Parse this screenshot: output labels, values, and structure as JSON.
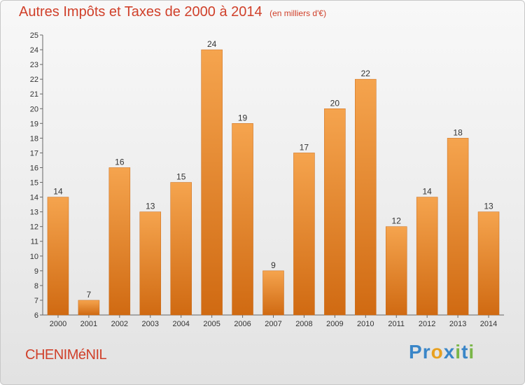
{
  "header": {
    "title": "Autres Impôts et Taxes de 2000 à 2014",
    "unit": "(en milliers d'€)"
  },
  "footer": {
    "commune": "CHENIMéNIL",
    "logo_text": "Proxiti",
    "logo_letters": [
      {
        "ch": "P",
        "color": "#3a86c8"
      },
      {
        "ch": "r",
        "color": "#3a86c8"
      },
      {
        "ch": "o",
        "color": "#e8a020"
      },
      {
        "ch": "x",
        "color": "#3a86c8"
      },
      {
        "ch": "i",
        "color": "#7ab648"
      },
      {
        "ch": "t",
        "color": "#3a86c8"
      },
      {
        "ch": "i",
        "color": "#7ab648"
      }
    ]
  },
  "chart_data": {
    "type": "bar",
    "title": "Autres Impôts et Taxes de 2000 à 2014",
    "subtitle": "(en milliers d'€)",
    "categories": [
      "2000",
      "2001",
      "2002",
      "2003",
      "2004",
      "2005",
      "2006",
      "2007",
      "2008",
      "2009",
      "2010",
      "2011",
      "2012",
      "2013",
      "2014"
    ],
    "values": [
      14,
      7,
      16,
      13,
      15,
      24,
      19,
      9,
      17,
      20,
      22,
      12,
      14,
      18,
      13
    ],
    "ylim": [
      6,
      25
    ],
    "yticks": [
      6,
      7,
      8,
      9,
      10,
      11,
      12,
      13,
      14,
      15,
      16,
      17,
      18,
      19,
      20,
      21,
      22,
      23,
      24,
      25
    ],
    "grid": false,
    "data_labels": true,
    "colors": {
      "bar_top": "#f5a44e",
      "bar_bottom": "#d06a12",
      "title": "#d0402a"
    }
  }
}
